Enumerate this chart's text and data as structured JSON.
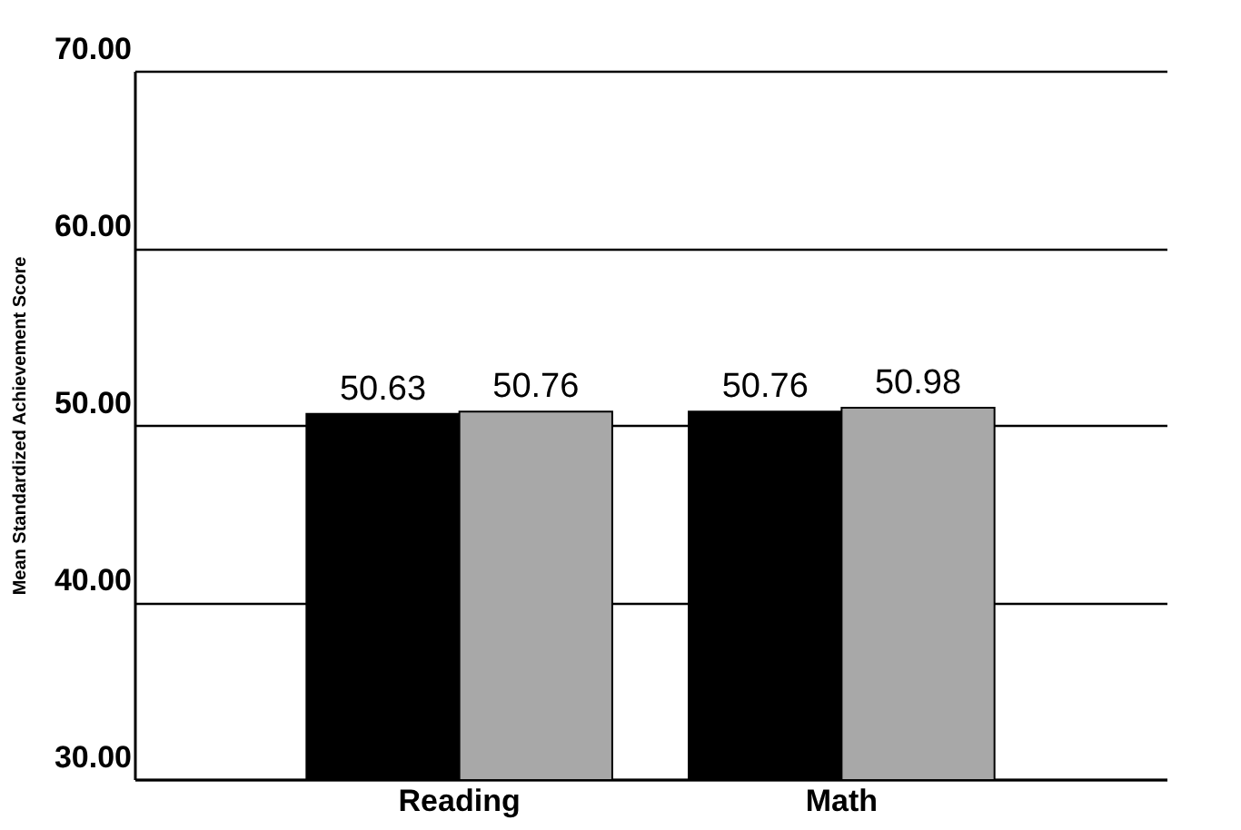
{
  "chart_data": {
    "type": "bar",
    "ylabel": "Mean Standardized Achievement Score",
    "categories": [
      "Reading",
      "Math"
    ],
    "series": [
      {
        "color": "#000000",
        "values": [
          50.63,
          50.76
        ]
      },
      {
        "color": "#a8a8a8",
        "values": [
          50.76,
          50.98
        ]
      }
    ],
    "ylim": [
      30,
      70
    ],
    "yticks": [
      {
        "value": 30,
        "label": "30.00"
      },
      {
        "value": 40,
        "label": "40.00"
      },
      {
        "value": 50,
        "label": "50.00"
      },
      {
        "value": 60,
        "label": "60.00"
      },
      {
        "value": 70,
        "label": "70.00"
      }
    ],
    "grid": "y",
    "data_labels": true
  }
}
